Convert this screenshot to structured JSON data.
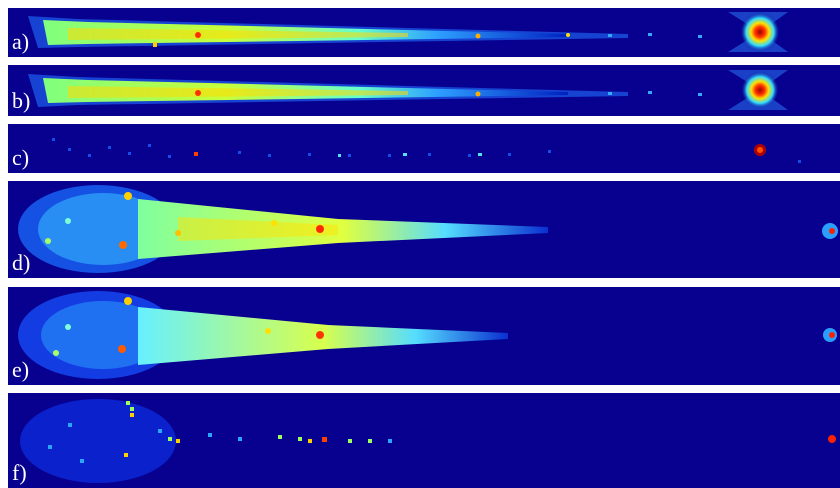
{
  "figure": {
    "panels": [
      {
        "id": "a",
        "label": "a)"
      },
      {
        "id": "b",
        "label": "b)"
      },
      {
        "id": "c",
        "label": "c)"
      },
      {
        "id": "d",
        "label": "d)"
      },
      {
        "id": "e",
        "label": "e)"
      },
      {
        "id": "f",
        "label": "f)"
      }
    ]
  },
  "colors": {
    "background": "#08008f",
    "colormap": "jet"
  }
}
